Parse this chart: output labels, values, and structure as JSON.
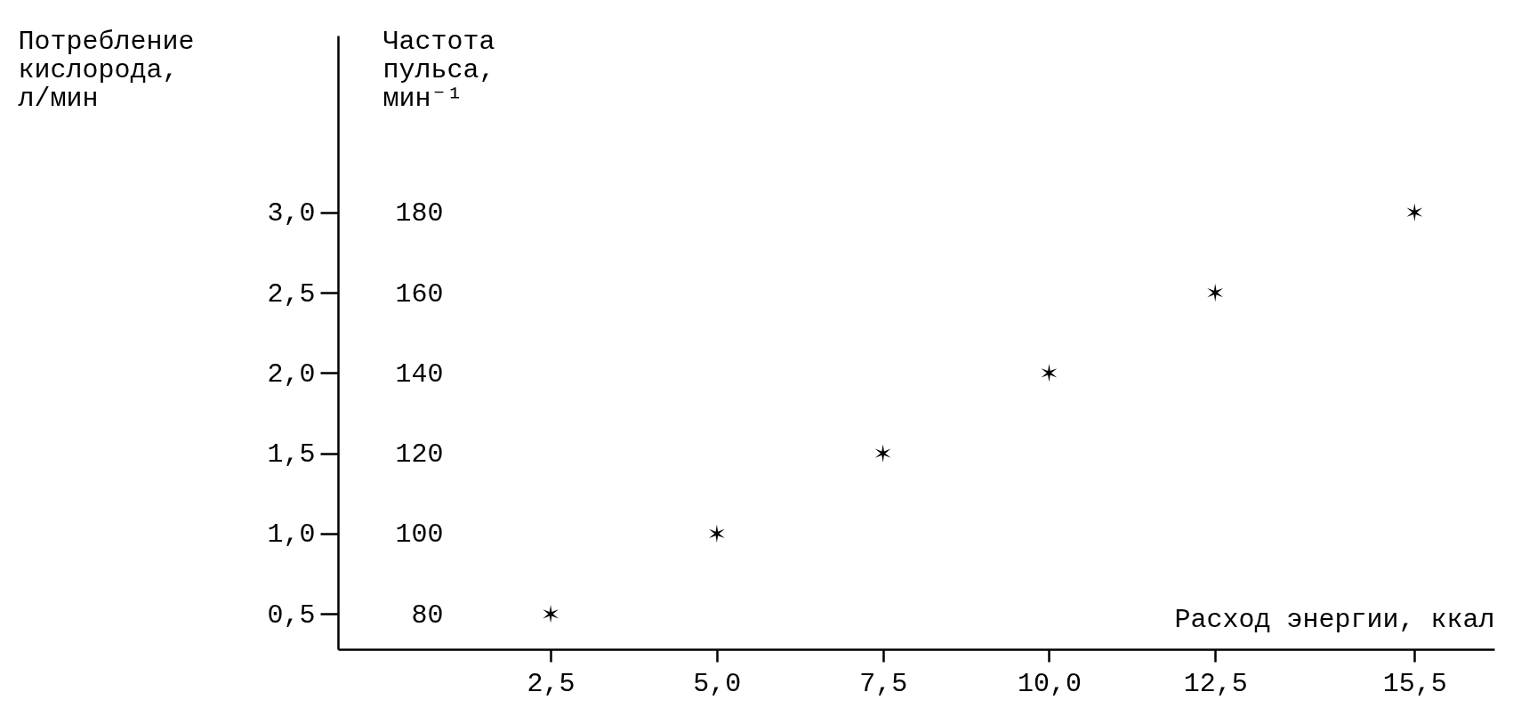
{
  "chart_data": {
    "type": "scatter",
    "xlabel": "Расход энергии, ккал",
    "ylabel": "Потребление кислорода, л/мин",
    "y2label": "Частота пульса, мин⁻¹",
    "x": [
      2.5,
      5,
      7.5,
      10,
      12.5,
      15.5
    ],
    "series": [
      {
        "color": "#000000",
        "values": [
          0.5,
          1.0,
          1.5,
          2.0,
          2.5,
          3.0
        ]
      }
    ],
    "xlim": [
      -0.7,
      16.7
    ],
    "xticks": [
      {
        "value": 2.5,
        "label": "2,5"
      },
      {
        "value": 5,
        "label": "5,0"
      },
      {
        "value": 7.5,
        "label": "7,5"
      },
      {
        "value": 10,
        "label": "10,0"
      },
      {
        "value": 12.5,
        "label": "12,5"
      },
      {
        "value": 15.5,
        "label": "15,5"
      }
    ],
    "ylim": [
      0.28,
      4.1
    ],
    "yticks": [
      {
        "value": 0.5,
        "label": "0,5"
      },
      {
        "value": 1,
        "label": "1,0"
      },
      {
        "value": 1.5,
        "label": "1,5"
      },
      {
        "value": 2,
        "label": "2,0"
      },
      {
        "value": 2.5,
        "label": "2,5"
      },
      {
        "value": 3,
        "label": "3,0"
      }
    ],
    "y2lim": [
      71.2,
      224
    ],
    "y2ticks": [
      80,
      100,
      120,
      140,
      160,
      180
    ],
    "marker": "cross",
    "grid": false
  }
}
